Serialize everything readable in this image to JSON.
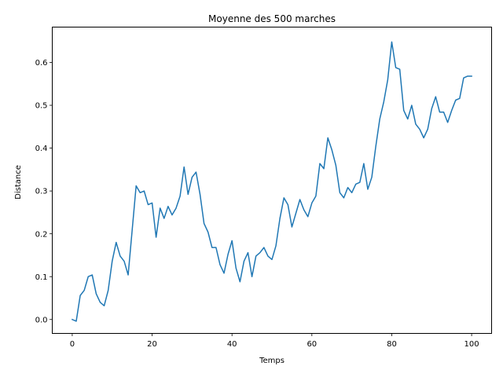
{
  "chart_data": {
    "type": "line",
    "title": "Moyenne des 500 marches",
    "xlabel": "Temps",
    "ylabel": "Distance",
    "xlim": [
      -5,
      105
    ],
    "ylim": [
      -0.0325,
      0.6825
    ],
    "xticks": [
      0,
      20,
      40,
      60,
      80,
      100
    ],
    "xtick_labels": [
      "0",
      "20",
      "40",
      "60",
      "80",
      "100"
    ],
    "yticks": [
      0.0,
      0.1,
      0.2,
      0.3,
      0.4,
      0.5,
      0.6
    ],
    "ytick_labels": [
      "0.0",
      "0.1",
      "0.2",
      "0.3",
      "0.4",
      "0.5",
      "0.6"
    ],
    "grid": false,
    "series": [
      {
        "color": "#1f77b4",
        "x": [
          0,
          1,
          2,
          3,
          4,
          5,
          6,
          7,
          8,
          9,
          10,
          11,
          12,
          13,
          14,
          15,
          16,
          17,
          18,
          19,
          20,
          21,
          22,
          23,
          24,
          25,
          26,
          27,
          28,
          29,
          30,
          31,
          32,
          33,
          34,
          35,
          36,
          37,
          38,
          39,
          40,
          41,
          42,
          43,
          44,
          45,
          46,
          47,
          48,
          49,
          50,
          51,
          52,
          53,
          54,
          55,
          56,
          57,
          58,
          59,
          60,
          61,
          62,
          63,
          64,
          65,
          66,
          67,
          68,
          69,
          70,
          71,
          72,
          73,
          74,
          75,
          76,
          77,
          78,
          79,
          80,
          81,
          82,
          83,
          84,
          85,
          86,
          87,
          88,
          89,
          90,
          91,
          92,
          93,
          94,
          95,
          96,
          97,
          98,
          99,
          100
        ],
        "y": [
          0.0,
          -0.004,
          0.056,
          0.068,
          0.1,
          0.104,
          0.06,
          0.04,
          0.032,
          0.068,
          0.136,
          0.18,
          0.148,
          0.136,
          0.104,
          0.208,
          0.312,
          0.296,
          0.3,
          0.268,
          0.272,
          0.192,
          0.26,
          0.236,
          0.264,
          0.244,
          0.26,
          0.288,
          0.356,
          0.292,
          0.332,
          0.344,
          0.292,
          0.224,
          0.204,
          0.168,
          0.168,
          0.128,
          0.108,
          0.152,
          0.184,
          0.12,
          0.088,
          0.136,
          0.156,
          0.1,
          0.148,
          0.156,
          0.168,
          0.148,
          0.14,
          0.172,
          0.236,
          0.284,
          0.268,
          0.216,
          0.248,
          0.28,
          0.256,
          0.24,
          0.272,
          0.288,
          0.364,
          0.352,
          0.424,
          0.396,
          0.36,
          0.296,
          0.284,
          0.308,
          0.296,
          0.316,
          0.32,
          0.364,
          0.304,
          0.332,
          0.404,
          0.468,
          0.508,
          0.56,
          0.648,
          0.588,
          0.584,
          0.488,
          0.468,
          0.5,
          0.456,
          0.444,
          0.424,
          0.444,
          0.492,
          0.52,
          0.484,
          0.484,
          0.46,
          0.488,
          0.512,
          0.516,
          0.564,
          0.568,
          0.568
        ]
      }
    ]
  }
}
